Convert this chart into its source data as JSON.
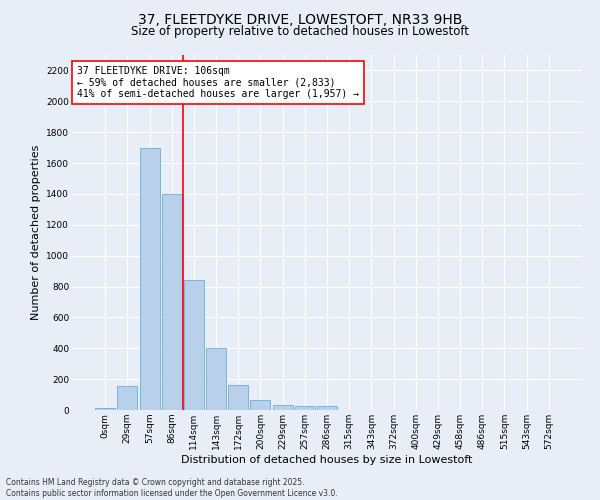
{
  "title_line1": "37, FLEETDYKE DRIVE, LOWESTOFT, NR33 9HB",
  "title_line2": "Size of property relative to detached houses in Lowestoft",
  "xlabel": "Distribution of detached houses by size in Lowestoft",
  "ylabel": "Number of detached properties",
  "bar_labels": [
    "0sqm",
    "29sqm",
    "57sqm",
    "86sqm",
    "114sqm",
    "143sqm",
    "172sqm",
    "200sqm",
    "229sqm",
    "257sqm",
    "286sqm",
    "315sqm",
    "343sqm",
    "372sqm",
    "400sqm",
    "429sqm",
    "458sqm",
    "486sqm",
    "515sqm",
    "543sqm",
    "572sqm"
  ],
  "bar_heights": [
    15,
    155,
    1700,
    1400,
    840,
    400,
    165,
    65,
    35,
    28,
    28,
    0,
    0,
    0,
    0,
    0,
    0,
    0,
    0,
    0,
    0
  ],
  "bar_color": "#b8d0ea",
  "bar_edge_color": "#6baed6",
  "vline_x": 3.5,
  "vline_color": "red",
  "annotation_text": "37 FLEETDYKE DRIVE: 106sqm\n← 59% of detached houses are smaller (2,833)\n41% of semi-detached houses are larger (1,957) →",
  "annotation_box_color": "white",
  "annotation_box_edge": "red",
  "ylim": [
    0,
    2300
  ],
  "yticks": [
    0,
    200,
    400,
    600,
    800,
    1000,
    1200,
    1400,
    1600,
    1800,
    2000,
    2200
  ],
  "background_color": "#e8eef8",
  "grid_color": "#ffffff",
  "footer_line1": "Contains HM Land Registry data © Crown copyright and database right 2025.",
  "footer_line2": "Contains public sector information licensed under the Open Government Licence v3.0.",
  "title_fontsize": 10,
  "subtitle_fontsize": 8.5,
  "axis_label_fontsize": 8,
  "tick_fontsize": 6.5,
  "annotation_fontsize": 7,
  "footer_fontsize": 5.5
}
